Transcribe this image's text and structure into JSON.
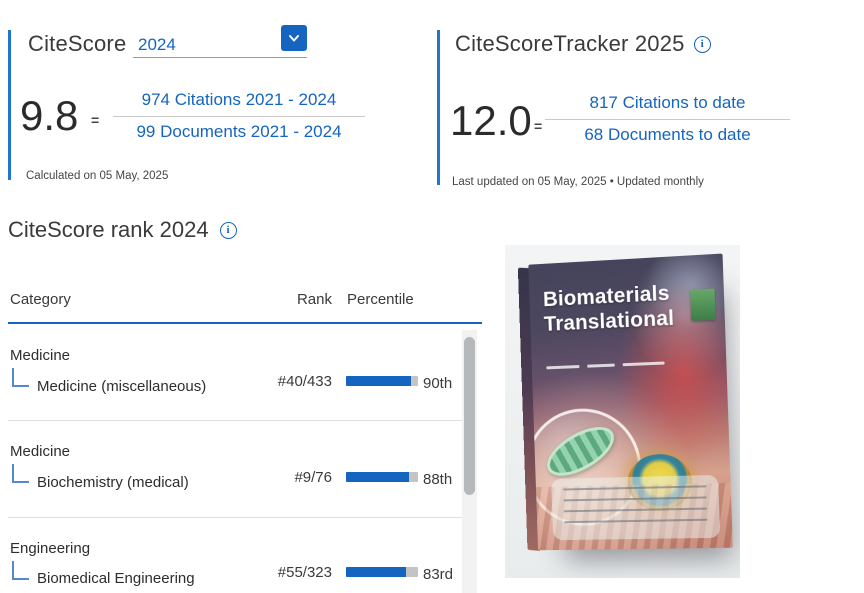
{
  "colors": {
    "accent_blue": "#1565c0",
    "accent_bar_blue": "#2277cc",
    "bar_fill": "#1565c0",
    "bar_track": "#c4c4c4",
    "text_dark": "#3a3a3a"
  },
  "citescore": {
    "title": "CiteScore",
    "year_selected": "2024",
    "dropdown_icon": "chevron-down",
    "value": "9.8",
    "equals": "=",
    "numerator_link": "974 Citations 2021 - 2024",
    "denominator_link": "99 Documents 2021 - 2024",
    "footnote": "Calculated on 05 May, 2025"
  },
  "tracker": {
    "title": "CiteScoreTracker 2025",
    "info_icon": "info-circle",
    "info_glyph": "i",
    "value": "12.0",
    "equals": "=",
    "numerator_link": "817 Citations to date",
    "denominator_link": "68 Documents to date",
    "footnote": "Last updated on 05 May, 2025 • Updated monthly"
  },
  "rank": {
    "title": "CiteScore rank 2024",
    "info_glyph": "i",
    "columns": {
      "category": "Category",
      "rank": "Rank",
      "percentile": "Percentile"
    },
    "rows": [
      {
        "parent": "Medicine",
        "subcategory": "Medicine (miscellaneous)",
        "rank": "#40/433",
        "percentile_label": "90th",
        "percentile_value": 90
      },
      {
        "parent": "Medicine",
        "subcategory": "Biochemistry (medical)",
        "rank": "#9/76",
        "percentile_label": "88th",
        "percentile_value": 88
      },
      {
        "parent": "Engineering",
        "subcategory": "Biomedical Engineering",
        "rank": "#55/323",
        "percentile_label": "83rd",
        "percentile_value": 83
      }
    ]
  },
  "journal_cover": {
    "title_line1": "Biomaterials",
    "title_line2": "Translational"
  }
}
